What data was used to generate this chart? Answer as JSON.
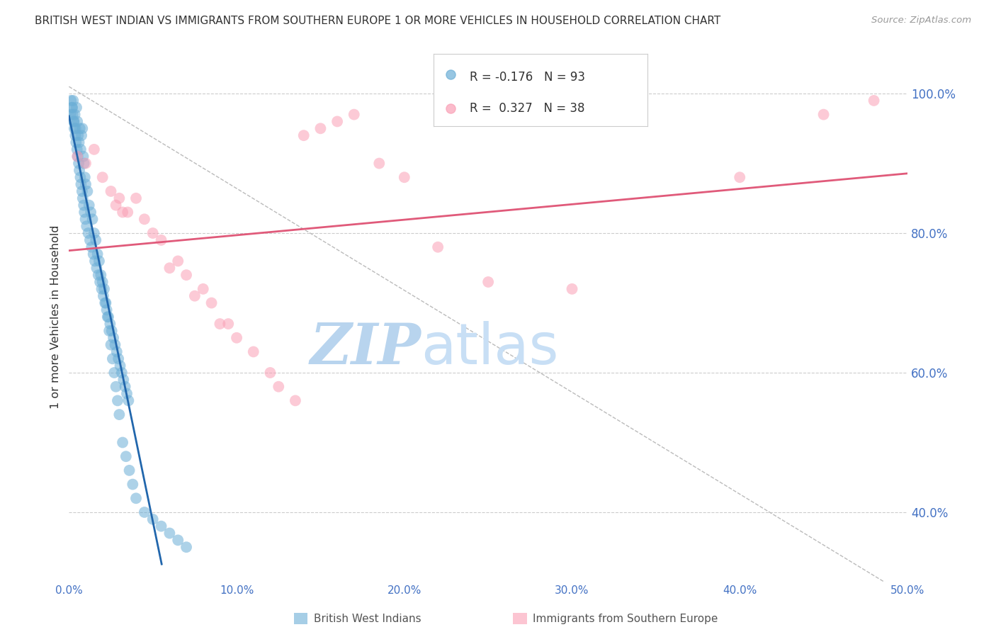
{
  "title": "BRITISH WEST INDIAN VS IMMIGRANTS FROM SOUTHERN EUROPE 1 OR MORE VEHICLES IN HOUSEHOLD CORRELATION CHART",
  "source": "Source: ZipAtlas.com",
  "ylabel": "1 or more Vehicles in Household",
  "xlim": [
    0.0,
    50.0
  ],
  "ylim": [
    30.0,
    106.0
  ],
  "yticks": [
    40.0,
    60.0,
    80.0,
    100.0
  ],
  "xticks": [
    0.0,
    10.0,
    20.0,
    30.0,
    40.0,
    50.0
  ],
  "blue_R": -0.176,
  "blue_N": 93,
  "pink_R": 0.327,
  "pink_N": 38,
  "blue_label": "British West Indians",
  "pink_label": "Immigrants from Southern Europe",
  "blue_color": "#6baed6",
  "pink_color": "#fa9fb5",
  "blue_line_color": "#2166ac",
  "pink_line_color": "#e05a7a",
  "watermark_zip": "ZIP",
  "watermark_atlas": "atlas",
  "watermark_color_zip": "#b8d4ee",
  "watermark_color_atlas": "#c8dff5",
  "background_color": "#ffffff",
  "blue_x": [
    0.1,
    0.2,
    0.25,
    0.3,
    0.35,
    0.4,
    0.45,
    0.5,
    0.55,
    0.6,
    0.65,
    0.7,
    0.75,
    0.8,
    0.85,
    0.9,
    0.95,
    1.0,
    1.1,
    1.2,
    1.3,
    1.4,
    1.5,
    1.6,
    1.7,
    1.8,
    1.9,
    2.0,
    2.1,
    2.2,
    2.3,
    2.4,
    2.5,
    2.6,
    2.7,
    2.8,
    2.9,
    3.0,
    3.2,
    3.4,
    3.6,
    3.8,
    4.0,
    4.5,
    5.0,
    5.5,
    6.0,
    6.5,
    7.0,
    0.12,
    0.18,
    0.22,
    0.28,
    0.32,
    0.38,
    0.42,
    0.48,
    0.52,
    0.58,
    0.62,
    0.68,
    0.72,
    0.78,
    0.82,
    0.88,
    0.92,
    0.98,
    1.05,
    1.15,
    1.25,
    1.35,
    1.45,
    1.55,
    1.65,
    1.75,
    1.85,
    1.95,
    2.05,
    2.15,
    2.25,
    2.35,
    2.45,
    2.55,
    2.65,
    2.75,
    2.85,
    2.95,
    3.05,
    3.15,
    3.25,
    3.35,
    3.45,
    3.55
  ],
  "blue_y": [
    97,
    98,
    99,
    96,
    97,
    95,
    98,
    96,
    94,
    93,
    95,
    92,
    94,
    95,
    91,
    90,
    88,
    87,
    86,
    84,
    83,
    82,
    80,
    79,
    77,
    76,
    74,
    73,
    72,
    70,
    68,
    66,
    64,
    62,
    60,
    58,
    56,
    54,
    50,
    48,
    46,
    44,
    42,
    40,
    39,
    38,
    37,
    36,
    35,
    99,
    98,
    97,
    96,
    95,
    94,
    93,
    92,
    91,
    90,
    89,
    88,
    87,
    86,
    85,
    84,
    83,
    82,
    81,
    80,
    79,
    78,
    77,
    76,
    75,
    74,
    73,
    72,
    71,
    70,
    69,
    68,
    67,
    66,
    65,
    64,
    63,
    62,
    61,
    60,
    59,
    58,
    57,
    56
  ],
  "pink_x": [
    0.5,
    1.0,
    2.0,
    2.5,
    3.0,
    3.5,
    4.5,
    5.0,
    5.5,
    6.5,
    7.0,
    8.0,
    8.5,
    9.5,
    10.0,
    11.0,
    12.0,
    12.5,
    13.5,
    14.0,
    15.0,
    16.0,
    17.0,
    18.5,
    20.0,
    22.0,
    25.0,
    30.0,
    40.0,
    45.0,
    48.0,
    1.5,
    2.8,
    3.2,
    4.0,
    6.0,
    7.5,
    9.0
  ],
  "pink_y": [
    91,
    90,
    88,
    86,
    85,
    83,
    82,
    80,
    79,
    76,
    74,
    72,
    70,
    67,
    65,
    63,
    60,
    58,
    56,
    94,
    95,
    96,
    97,
    90,
    88,
    78,
    73,
    72,
    88,
    97,
    99,
    92,
    84,
    83,
    85,
    75,
    71,
    67
  ]
}
